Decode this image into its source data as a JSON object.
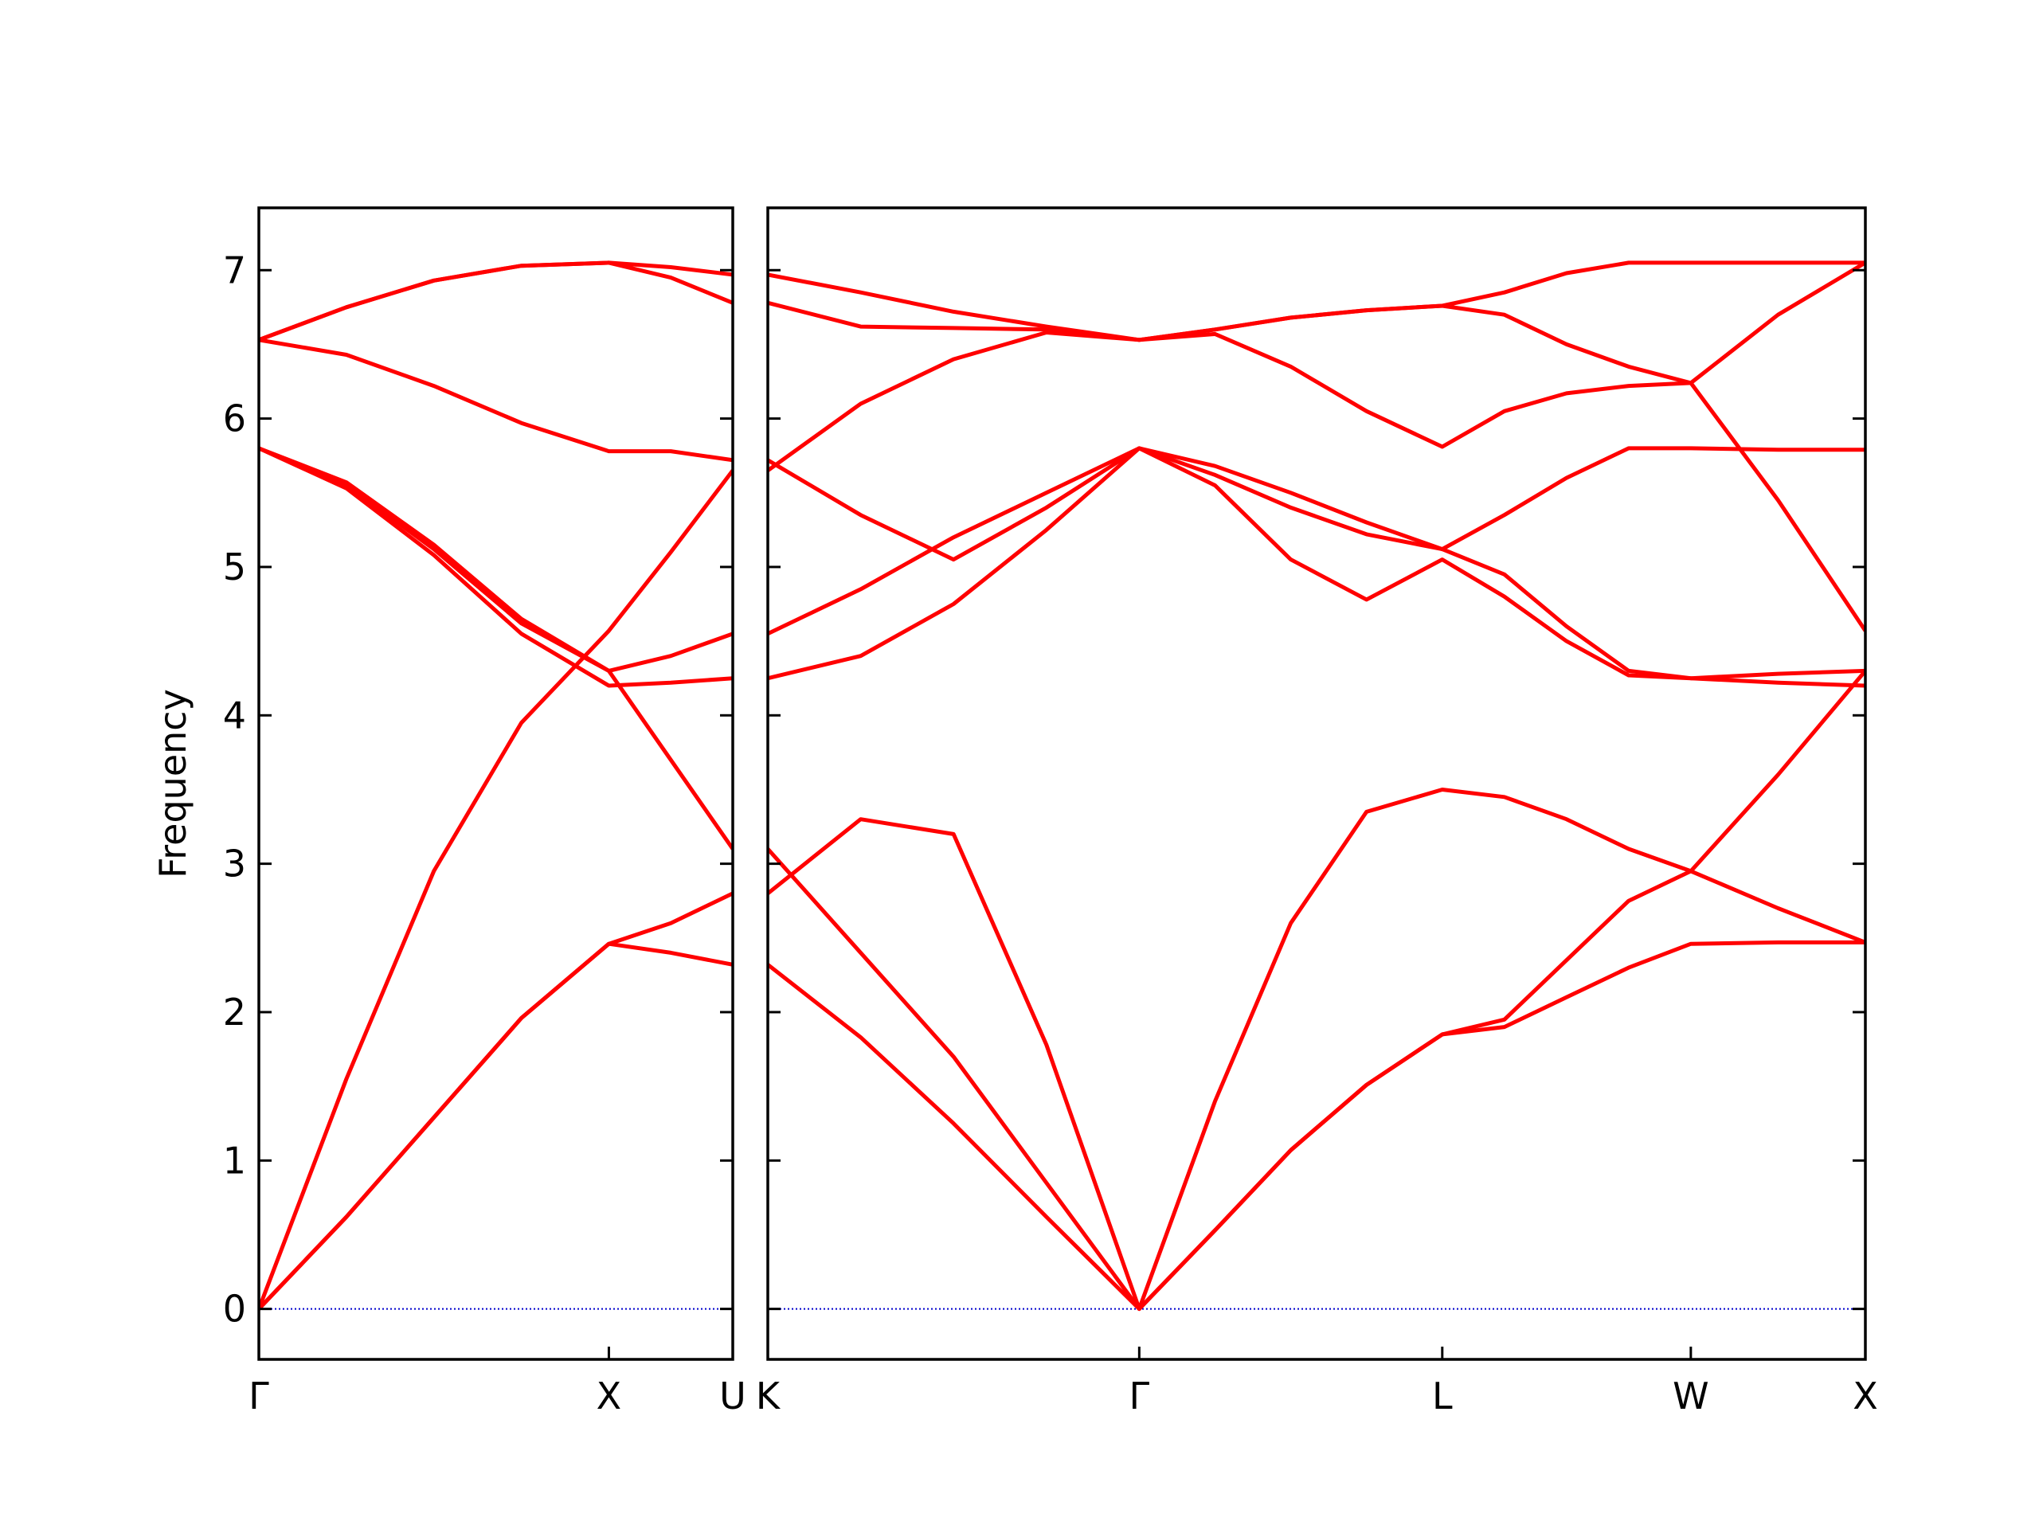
{
  "chart_data": [
    {
      "type": "line",
      "ylabel": "Frequency",
      "color": "#ff0000",
      "x": [
        0,
        0.25,
        0.5,
        0.75,
        1,
        1.177,
        1.354
      ],
      "xlim": [
        0,
        1.354
      ],
      "xticks": [
        {
          "value": 0,
          "label": "Γ"
        },
        {
          "value": 1,
          "label": "X"
        },
        {
          "value": 1.354,
          "label": "U"
        }
      ],
      "ylim": [
        -0.34,
        7.42
      ],
      "yticks": [
        0,
        1,
        2,
        3,
        4,
        5,
        6,
        7
      ],
      "yticklabels": true,
      "hline": {
        "value": 0,
        "color": "#0000cc"
      },
      "series": [
        {
          "values": [
            0,
            0.62,
            1.29,
            1.96,
            2.46,
            2.4,
            2.32
          ]
        },
        {
          "values": [
            0,
            0.62,
            1.29,
            1.96,
            2.46,
            2.6,
            2.8
          ]
        },
        {
          "values": [
            0,
            1.55,
            2.95,
            3.95,
            4.57,
            5.1,
            5.65
          ]
        },
        {
          "values": [
            5.8,
            5.53,
            5.08,
            4.55,
            4.2,
            4.22,
            4.25
          ]
        },
        {
          "values": [
            5.8,
            5.55,
            5.12,
            4.62,
            4.3,
            3.7,
            3.1
          ]
        },
        {
          "values": [
            5.8,
            5.57,
            5.15,
            4.65,
            4.3,
            4.4,
            4.55
          ]
        },
        {
          "values": [
            6.53,
            6.43,
            6.22,
            5.97,
            5.78,
            5.78,
            5.72
          ]
        },
        {
          "values": [
            6.53,
            6.75,
            6.93,
            7.03,
            7.05,
            6.95,
            6.78
          ]
        },
        {
          "values": [
            6.53,
            6.75,
            6.93,
            7.03,
            7.05,
            7.02,
            6.97
          ]
        }
      ]
    },
    {
      "type": "line",
      "color": "#ff0000",
      "x": [
        0,
        0.266,
        0.532,
        0.798,
        1.064,
        1.281,
        1.498,
        1.715,
        1.932,
        2.11,
        2.288,
        2.466,
        2.644,
        2.894,
        3.144
      ],
      "xlim": [
        0,
        3.144
      ],
      "xticks": [
        {
          "value": 0,
          "label": "K"
        },
        {
          "value": 1.064,
          "label": "Γ"
        },
        {
          "value": 1.932,
          "label": "L"
        },
        {
          "value": 2.644,
          "label": "W"
        },
        {
          "value": 3.144,
          "label": "X"
        }
      ],
      "ylim": [
        -0.34,
        7.42
      ],
      "yticks": [
        0,
        1,
        2,
        3,
        4,
        5,
        6,
        7
      ],
      "yticklabels": false,
      "hline": {
        "value": 0,
        "color": "#0000cc"
      },
      "series": [
        {
          "values": [
            2.32,
            1.83,
            1.25,
            0.62,
            0,
            0.53,
            1.07,
            1.51,
            1.85,
            1.9,
            2.1,
            2.3,
            2.46,
            2.47,
            2.47
          ]
        },
        {
          "values": [
            2.8,
            3.3,
            3.2,
            1.78,
            0,
            1.4,
            2.6,
            3.35,
            3.5,
            3.45,
            3.3,
            3.1,
            2.95,
            3.6,
            4.3
          ]
        },
        {
          "values": [
            3.1,
            2.4,
            1.7,
            0.85,
            0,
            0.53,
            1.07,
            1.51,
            1.85,
            1.95,
            2.35,
            2.75,
            2.95,
            2.7,
            2.47
          ]
        },
        {
          "values": [
            4.25,
            4.4,
            4.75,
            5.25,
            5.8,
            5.55,
            5.05,
            4.78,
            5.05,
            4.8,
            4.5,
            4.27,
            4.25,
            4.22,
            4.2
          ]
        },
        {
          "values": [
            4.55,
            4.85,
            5.2,
            5.5,
            5.8,
            5.62,
            5.4,
            5.22,
            5.12,
            4.95,
            4.6,
            4.3,
            4.25,
            4.28,
            4.3
          ]
        },
        {
          "values": [
            5.72,
            5.35,
            5.05,
            5.4,
            5.8,
            5.68,
            5.5,
            5.3,
            5.12,
            5.35,
            5.6,
            5.8,
            5.8,
            5.79,
            5.79
          ]
        },
        {
          "values": [
            5.65,
            6.1,
            6.4,
            6.58,
            6.53,
            6.57,
            6.35,
            6.05,
            5.81,
            6.05,
            6.17,
            6.22,
            6.24,
            5.45,
            4.57
          ]
        },
        {
          "values": [
            6.78,
            6.62,
            6.61,
            6.6,
            6.53,
            6.6,
            6.68,
            6.73,
            6.76,
            6.7,
            6.5,
            6.35,
            6.24,
            6.7,
            7.05
          ]
        },
        {
          "values": [
            6.97,
            6.85,
            6.72,
            6.62,
            6.53,
            6.6,
            6.68,
            6.73,
            6.76,
            6.85,
            6.98,
            7.05,
            7.05,
            7.05,
            7.05
          ]
        }
      ]
    }
  ]
}
